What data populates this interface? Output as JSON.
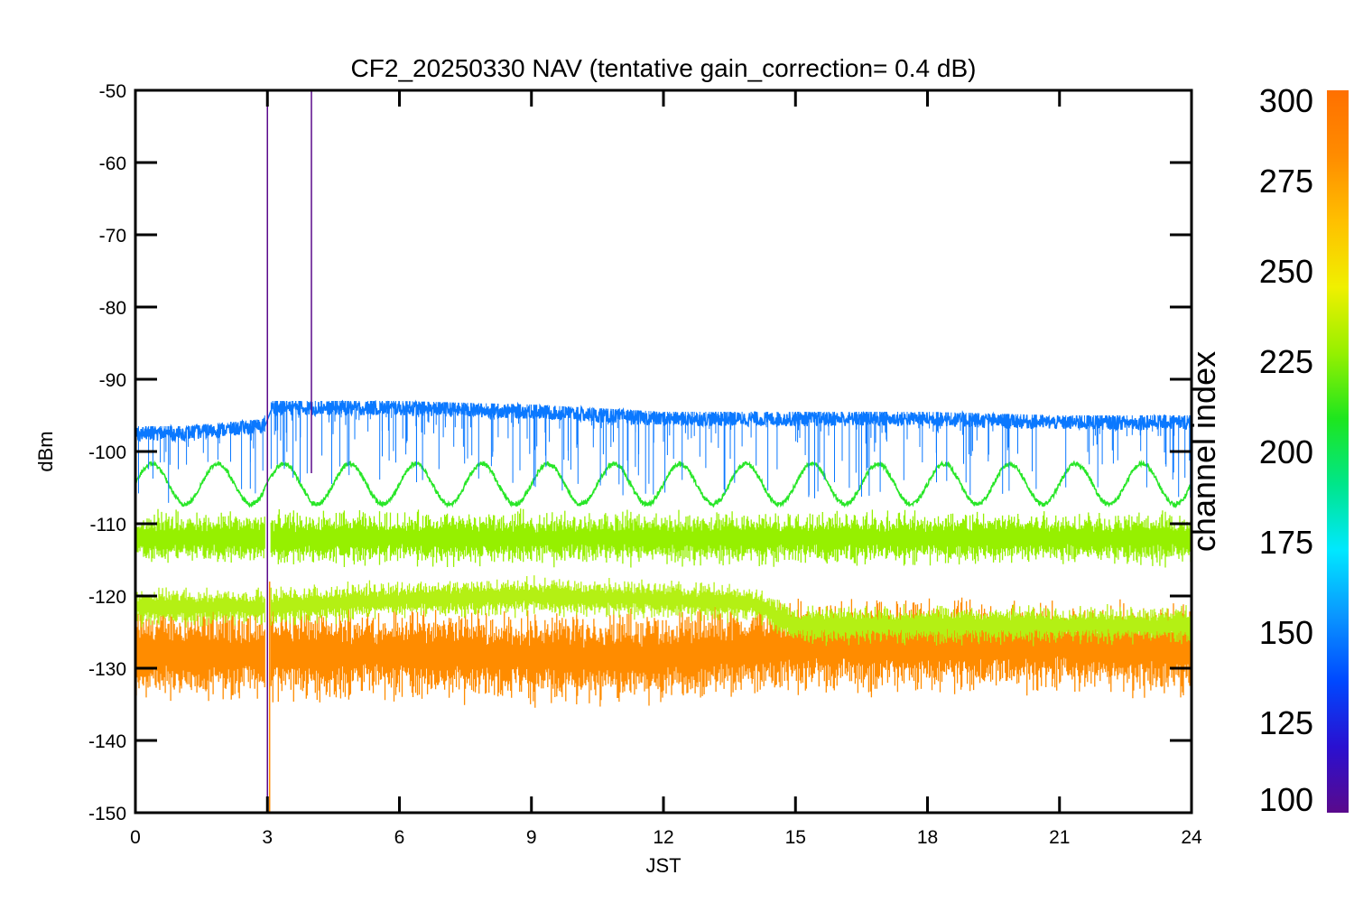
{
  "chart_data": {
    "type": "line",
    "title": "CF2_20250330 NAV (tentative gain_correction=  0.4 dB)",
    "xlabel": "JST",
    "ylabel": "dBm",
    "xlim": [
      0,
      24
    ],
    "ylim": [
      -150,
      -50
    ],
    "x_ticks": [
      0,
      3,
      6,
      9,
      12,
      15,
      18,
      21,
      24
    ],
    "y_ticks": [
      -50,
      -60,
      -70,
      -80,
      -90,
      -100,
      -110,
      -120,
      -130,
      -140,
      -150
    ],
    "colorbar": {
      "label": "channel index",
      "range": [
        100,
        300
      ],
      "ticks": [
        300,
        275,
        250,
        225,
        200,
        175,
        150,
        125,
        100
      ],
      "colors": [
        "#5a0a8c",
        "#2a10d0",
        "#0048ff",
        "#0a96ff",
        "#00e8ff",
        "#00e68a",
        "#1ee61e",
        "#96f000",
        "#f0f000",
        "#ffc000",
        "#ff8c00",
        "#ff7000"
      ]
    },
    "grid": false,
    "series": [
      {
        "color": "#0a78ff",
        "x": [
          0,
          1,
          2,
          2.9,
          3.1,
          6,
          9,
          12,
          15,
          18,
          21,
          24
        ],
        "y": [
          -97.5,
          -97.5,
          -97,
          -96.5,
          -94,
          -94,
          -94.5,
          -95.5,
          -95.5,
          -95.5,
          -96,
          -96
        ],
        "noise": 2,
        "spike_down": 5
      },
      {
        "color": "#28e628",
        "x": [
          0,
          24
        ],
        "y": [
          -104.5,
          -104.5
        ],
        "oscillation_amplitude": 2.8,
        "oscillation_period": 1.5
      },
      {
        "color": "#96f000",
        "x": [
          0,
          24
        ],
        "y": [
          -112,
          -112
        ],
        "band_halfwidth": 3.5
      },
      {
        "color": "#b4f014",
        "x": [
          0,
          3,
          6,
          9,
          12,
          14,
          15,
          18,
          24
        ],
        "y": [
          -121.5,
          -121.5,
          -120.5,
          -120,
          -120.5,
          -121,
          -124,
          -124,
          -124
        ],
        "band_halfwidth": 2.5
      },
      {
        "color": "#ff8c00",
        "x": [
          0,
          3,
          6,
          9,
          12,
          15,
          18,
          21,
          24
        ],
        "y": [
          -128,
          -128,
          -128,
          -128.5,
          -128.5,
          -127,
          -127,
          -127,
          -127.5
        ],
        "band_halfwidth": 6
      }
    ],
    "spikes": [
      {
        "x": 3.0,
        "y_top": -52,
        "y_bottom": -150,
        "color": "#5a0a8c"
      },
      {
        "x": 4.0,
        "y_top": -50,
        "y_bottom": -103,
        "color": "#5a0a8c"
      },
      {
        "x": 3.05,
        "y_top": -118,
        "y_bottom": -150,
        "color": "#ff8c00"
      }
    ]
  }
}
